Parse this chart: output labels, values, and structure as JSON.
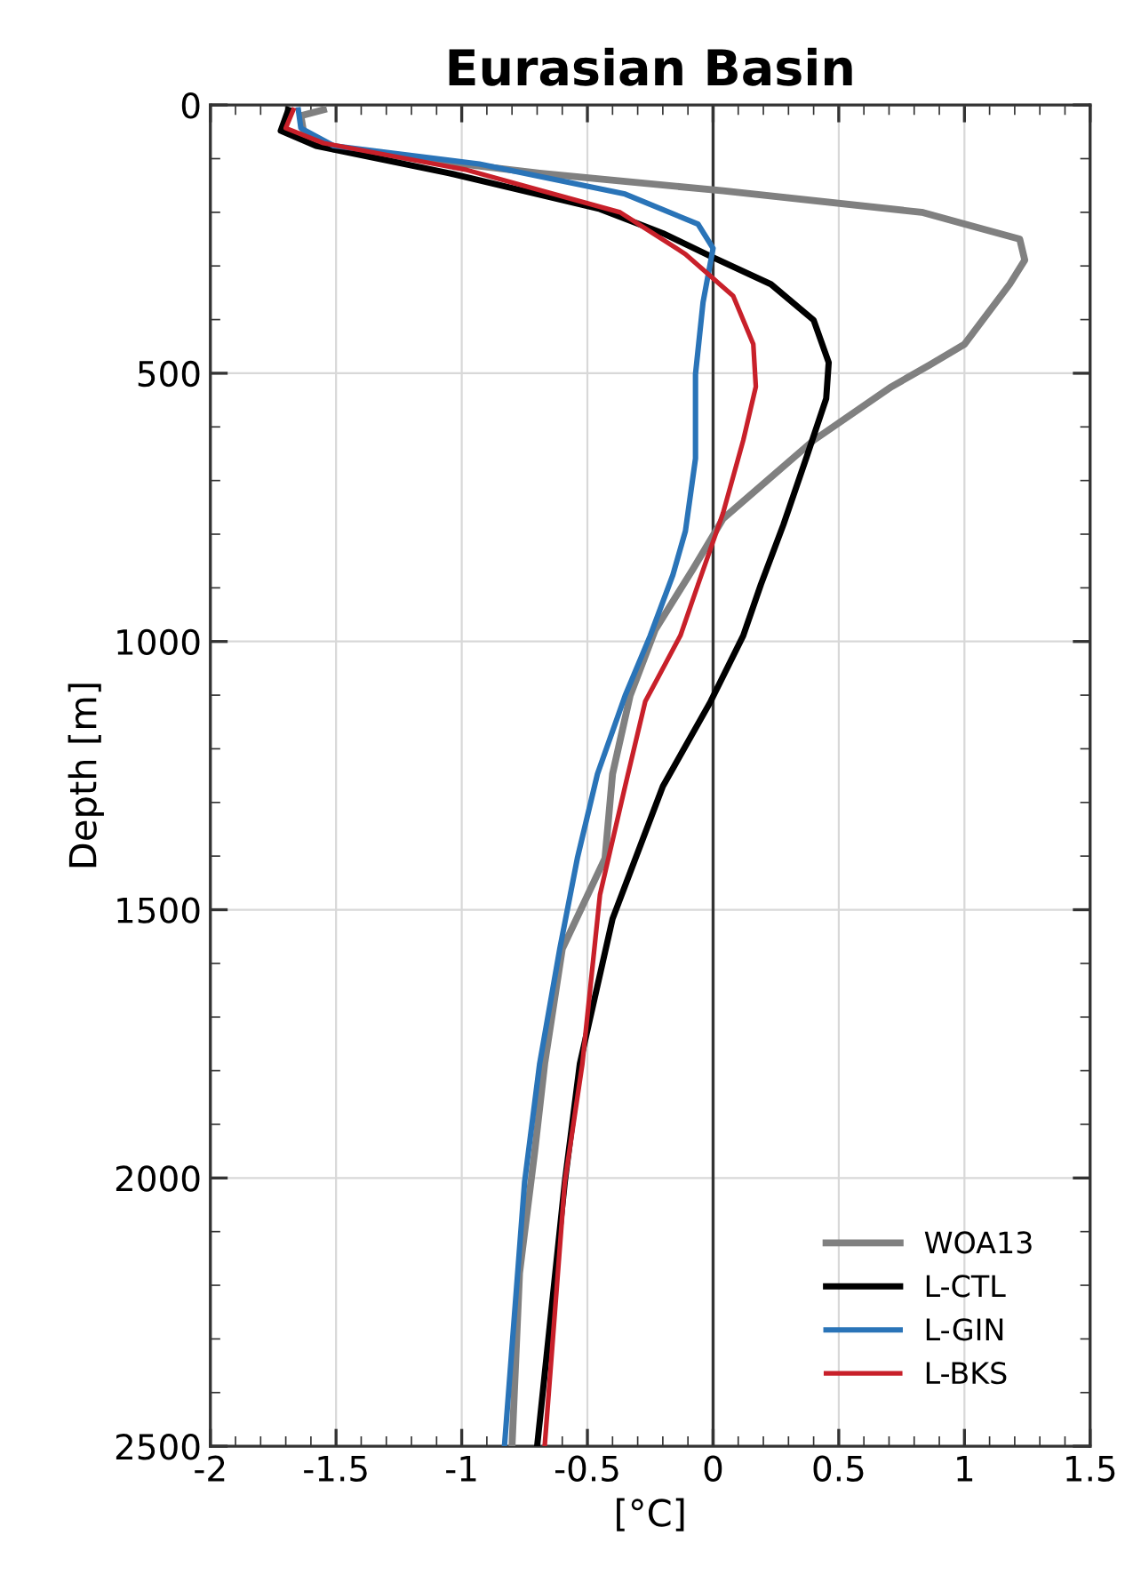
{
  "chart_data": {
    "type": "line",
    "title": "Eurasian Basin",
    "xlabel": "[°C]",
    "ylabel": "Depth [m]",
    "xlim": [
      -2,
      1.5
    ],
    "xticks": [
      -2,
      -1.5,
      -1,
      -0.5,
      0,
      0.5,
      1,
      1.5
    ],
    "ylim": [
      2500,
      0
    ],
    "yticks": [
      0,
      500,
      1000,
      1500,
      2000,
      2500
    ],
    "grid": true,
    "legend": "bottom right",
    "line_style": "solid",
    "marker": "none",
    "ref_lines": [
      {
        "axis": "x",
        "value": 0,
        "color": "#333333"
      }
    ],
    "series": [
      {
        "name": "WOA13",
        "color": "#808080",
        "x": [
          -1.55,
          -1.64,
          -1.63,
          -1.51,
          -0.69,
          0.04,
          0.83,
          1.22,
          1.24,
          1.18,
          1.0,
          0.86,
          0.71,
          0.4,
          0.04,
          -0.08,
          -0.23,
          -0.33,
          -0.4,
          -0.43,
          -0.6,
          -0.67,
          -0.71,
          -0.77,
          -0.8
        ],
        "values": [
          9,
          20,
          48,
          82,
          127,
          160,
          200,
          250,
          289,
          334,
          446,
          485,
          525,
          625,
          771,
          865,
          978,
          1101,
          1247,
          1404,
          1573,
          1787,
          1952,
          2177,
          2500
        ]
      },
      {
        "name": "L-CTL",
        "color": "#000000",
        "x": [
          -1.69,
          -1.72,
          -1.58,
          -1.05,
          -0.45,
          -0.2,
          0.0,
          0.23,
          0.4,
          0.46,
          0.45,
          0.37,
          0.28,
          0.19,
          0.12,
          -0.01,
          -0.2,
          -0.4,
          -0.53,
          -0.59,
          -0.7
        ],
        "values": [
          9,
          48,
          76,
          127,
          194,
          239,
          284,
          334,
          401,
          480,
          547,
          659,
          782,
          894,
          989,
          1112,
          1270,
          1517,
          1787,
          2008,
          2500
        ]
      },
      {
        "name": "L-GIN",
        "color": "#2a74b8",
        "x": [
          -1.65,
          -1.64,
          -1.51,
          -0.93,
          -0.35,
          -0.06,
          0.0,
          -0.04,
          -0.07,
          -0.07,
          -0.11,
          -0.16,
          -0.25,
          -0.35,
          -0.46,
          -0.54,
          -0.61,
          -0.69,
          -0.75,
          -0.83
        ],
        "values": [
          9,
          43,
          76,
          110,
          166,
          222,
          267,
          368,
          502,
          659,
          794,
          876,
          989,
          1101,
          1247,
          1404,
          1573,
          1787,
          2008,
          2500
        ]
      },
      {
        "name": "L-BKS",
        "color": "#c8202a",
        "x": [
          -1.67,
          -1.7,
          -1.55,
          -0.98,
          -0.37,
          -0.11,
          0.08,
          0.16,
          0.17,
          0.12,
          0.04,
          -0.06,
          -0.13,
          -0.27,
          -0.35,
          -0.45,
          -0.52,
          -0.59,
          -0.67
        ],
        "values": [
          9,
          43,
          71,
          121,
          200,
          278,
          356,
          446,
          525,
          625,
          760,
          894,
          989,
          1112,
          1270,
          1472,
          1787,
          2008,
          2500
        ]
      }
    ]
  }
}
